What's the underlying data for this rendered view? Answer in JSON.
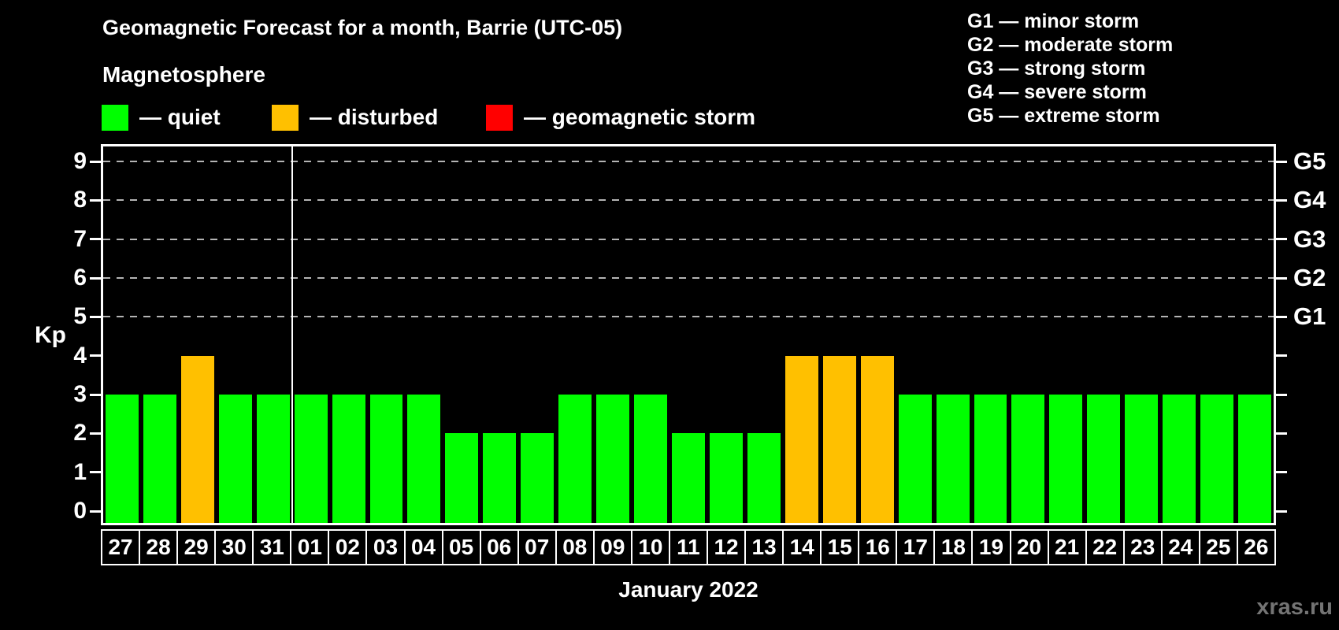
{
  "title": "Geomagnetic Forecast for a month, Barrie (UTC-05)",
  "subtitle": "Magnetosphere",
  "legend": {
    "items": [
      {
        "key": "quiet",
        "color": "#00ff00",
        "label": "— quiet"
      },
      {
        "key": "disturbed",
        "color": "#ffc000",
        "label": "— disturbed"
      },
      {
        "key": "storm",
        "color": "#ff0000",
        "label": "— geomagnetic storm"
      }
    ]
  },
  "g_legend": [
    "G1 — minor storm",
    "G2 — moderate storm",
    "G3 — strong storm",
    "G4 — severe storm",
    "G5 — extreme storm"
  ],
  "watermark": "xras.ru",
  "chart_data": {
    "type": "bar",
    "title": "Geomagnetic Forecast for a month, Barrie (UTC-05)",
    "xlabel": "January 2022",
    "ylabel": "Kp",
    "ylim": [
      0,
      9
    ],
    "yticks": [
      "0",
      "1",
      "2",
      "3",
      "4",
      "5",
      "6",
      "7",
      "8",
      "9"
    ],
    "gridlines_at": [
      5,
      6,
      7,
      8,
      9
    ],
    "grid": "dashed-horizontal",
    "legend_position": "top",
    "right_axis": [
      {
        "kp": 5,
        "label": "G1"
      },
      {
        "kp": 6,
        "label": "G2"
      },
      {
        "kp": 7,
        "label": "G3"
      },
      {
        "kp": 8,
        "label": "G4"
      },
      {
        "kp": 9,
        "label": "G5"
      }
    ],
    "status_colors": {
      "quiet": "#00ff00",
      "disturbed": "#ffc000",
      "storm": "#ff0000"
    },
    "month_divider_after_index": 4,
    "categories": [
      "27",
      "28",
      "29",
      "30",
      "31",
      "01",
      "02",
      "03",
      "04",
      "05",
      "06",
      "07",
      "08",
      "09",
      "10",
      "11",
      "12",
      "13",
      "14",
      "15",
      "16",
      "17",
      "18",
      "19",
      "20",
      "21",
      "22",
      "23",
      "24",
      "25",
      "26"
    ],
    "values": [
      3,
      3,
      4,
      3,
      3,
      3,
      3,
      3,
      3,
      2,
      2,
      2,
      3,
      3,
      3,
      2,
      2,
      2,
      4,
      4,
      4,
      3,
      3,
      3,
      3,
      3,
      3,
      3,
      3,
      3,
      3
    ],
    "statuses": [
      "quiet",
      "quiet",
      "disturbed",
      "quiet",
      "quiet",
      "quiet",
      "quiet",
      "quiet",
      "quiet",
      "quiet",
      "quiet",
      "quiet",
      "quiet",
      "quiet",
      "quiet",
      "quiet",
      "quiet",
      "quiet",
      "disturbed",
      "disturbed",
      "disturbed",
      "quiet",
      "quiet",
      "quiet",
      "quiet",
      "quiet",
      "quiet",
      "quiet",
      "quiet",
      "quiet",
      "quiet"
    ]
  }
}
